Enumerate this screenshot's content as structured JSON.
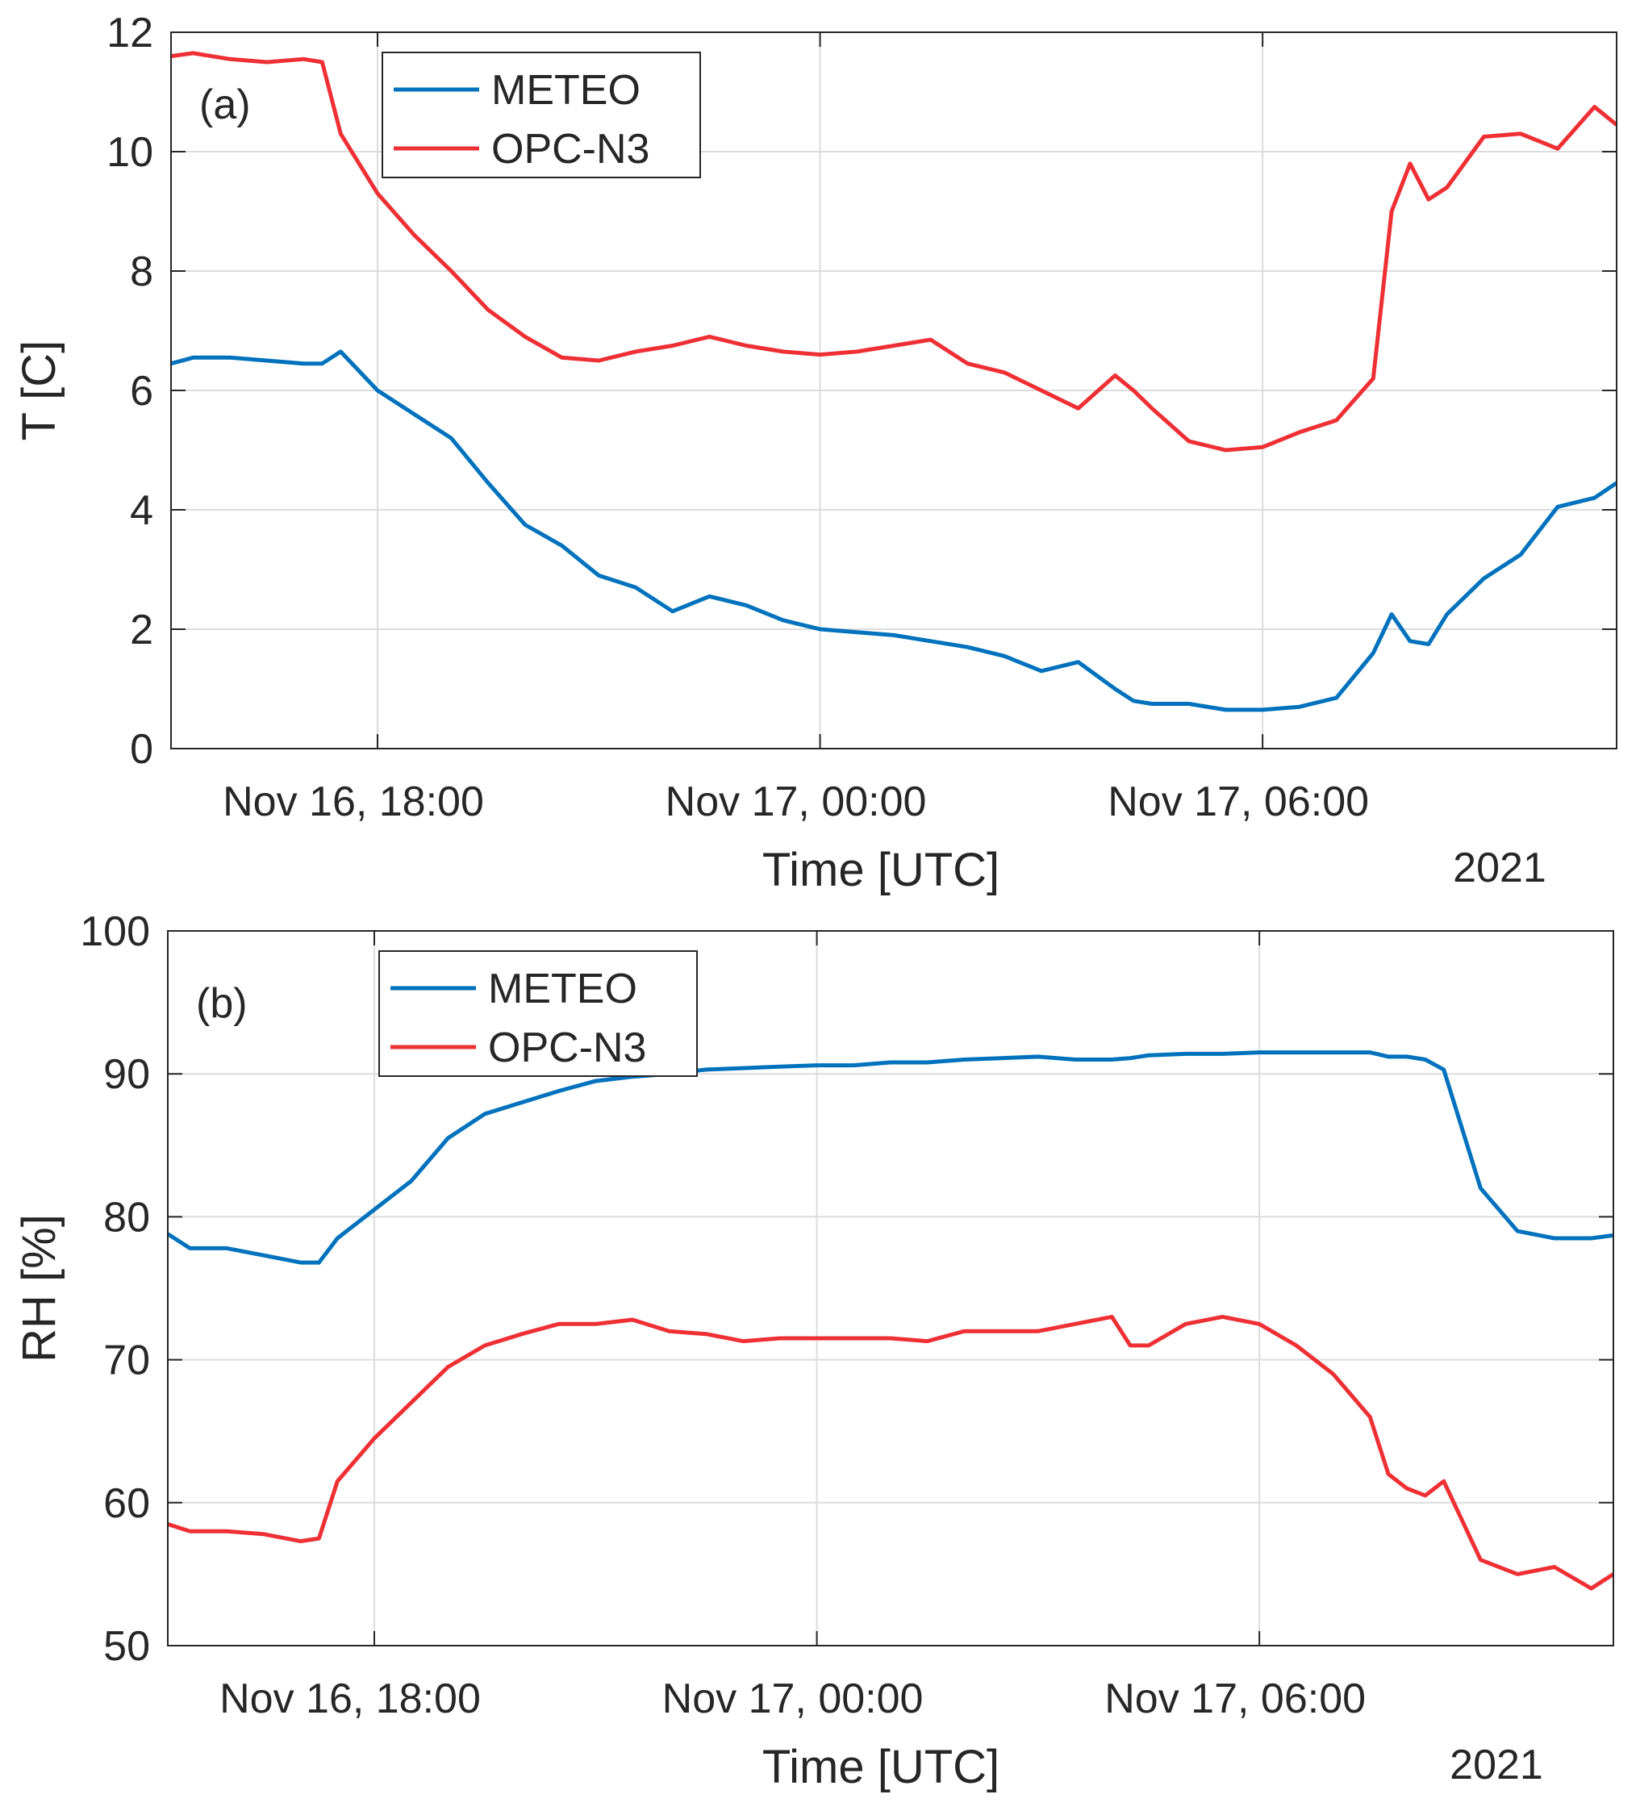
{
  "chart_data": [
    {
      "type": "line",
      "panel_label": "(a)",
      "ylabel": "T [C]",
      "xlabel": "Time [UTC]",
      "year_label": "2021",
      "ylim": [
        0,
        12
      ],
      "yticks": [
        "0",
        "2",
        "4",
        "6",
        "8",
        "10",
        "12"
      ],
      "xlim_hours": [
        15.2,
        10.8
      ],
      "xlim": [
        "Nov 16, 15:12",
        "Nov 17, 10:48"
      ],
      "xtick_labels": [
        "Nov 16, 18:00",
        "Nov 17, 00:00",
        "Nov 17, 06:00"
      ],
      "xtick_times": [
        "Nov 16, 18:00",
        "Nov 17, 00:00",
        "Nov 17, 06:00"
      ],
      "grid": true,
      "legend": "top-left",
      "x": [
        "Nov 16, 15:12",
        "Nov 16, 15:30",
        "Nov 16, 16:00",
        "Nov 16, 16:30",
        "Nov 16, 17:00",
        "Nov 16, 17:15",
        "Nov 16, 17:30",
        "Nov 16, 18:00",
        "Nov 16, 18:30",
        "Nov 16, 19:00",
        "Nov 16, 19:30",
        "Nov 16, 20:00",
        "Nov 16, 20:30",
        "Nov 16, 21:00",
        "Nov 16, 21:30",
        "Nov 16, 22:00",
        "Nov 16, 22:30",
        "Nov 16, 23:00",
        "Nov 16, 23:30",
        "Nov 17, 00:00",
        "Nov 17, 00:30",
        "Nov 17, 01:00",
        "Nov 17, 01:30",
        "Nov 17, 02:00",
        "Nov 17, 02:30",
        "Nov 17, 03:00",
        "Nov 17, 03:30",
        "Nov 17, 04:00",
        "Nov 17, 04:15",
        "Nov 17, 04:30",
        "Nov 17, 05:00",
        "Nov 17, 05:30",
        "Nov 17, 06:00",
        "Nov 17, 06:30",
        "Nov 17, 07:00",
        "Nov 17, 07:30",
        "Nov 17, 07:45",
        "Nov 17, 08:00",
        "Nov 17, 08:15",
        "Nov 17, 08:30",
        "Nov 17, 09:00",
        "Nov 17, 09:30",
        "Nov 17, 10:00",
        "Nov 17, 10:30",
        "Nov 17, 10:48"
      ],
      "series": [
        {
          "name": "METEO",
          "color": "#0072BD",
          "values": [
            6.45,
            6.55,
            6.55,
            6.5,
            6.45,
            6.45,
            6.65,
            6.0,
            5.6,
            5.2,
            4.45,
            3.75,
            3.4,
            2.9,
            2.7,
            2.3,
            2.55,
            2.4,
            2.15,
            2.0,
            1.95,
            1.9,
            1.8,
            1.7,
            1.55,
            1.3,
            1.45,
            1.0,
            0.8,
            0.75,
            0.75,
            0.65,
            0.65,
            0.7,
            0.85,
            1.6,
            2.25,
            1.8,
            1.75,
            2.25,
            2.85,
            3.25,
            4.05,
            4.2,
            4.45
          ]
        },
        {
          "name": "OPC-N3",
          "color": "#EE3035",
          "values": [
            11.6,
            11.65,
            11.55,
            11.5,
            11.55,
            11.5,
            10.3,
            9.3,
            8.6,
            8.0,
            7.35,
            6.9,
            6.55,
            6.5,
            6.65,
            6.75,
            6.9,
            6.75,
            6.65,
            6.6,
            6.65,
            6.75,
            6.85,
            6.45,
            6.3,
            6.0,
            5.7,
            6.25,
            6.0,
            5.7,
            5.15,
            5.0,
            5.05,
            5.3,
            5.5,
            6.2,
            9.0,
            9.8,
            9.2,
            9.4,
            10.25,
            10.3,
            10.05,
            10.75,
            10.45
          ]
        }
      ]
    },
    {
      "type": "line",
      "panel_label": "(b)",
      "ylabel": "RH [%]",
      "xlabel": "Time [UTC]",
      "year_label": "2021",
      "ylim": [
        50,
        100
      ],
      "yticks": [
        "50",
        "60",
        "70",
        "80",
        "90",
        "100"
      ],
      "xlim_hours": [
        15.2,
        10.8
      ],
      "xlim": [
        "Nov 16, 15:12",
        "Nov 17, 10:48"
      ],
      "xtick_labels": [
        "Nov 16, 18:00",
        "Nov 17, 00:00",
        "Nov 17, 06:00"
      ],
      "xtick_times": [
        "Nov 16, 18:00",
        "Nov 17, 00:00",
        "Nov 17, 06:00"
      ],
      "grid": true,
      "legend": "top-left",
      "x": [
        "Nov 16, 15:12",
        "Nov 16, 15:30",
        "Nov 16, 16:00",
        "Nov 16, 16:30",
        "Nov 16, 17:00",
        "Nov 16, 17:15",
        "Nov 16, 17:30",
        "Nov 16, 18:00",
        "Nov 16, 18:30",
        "Nov 16, 19:00",
        "Nov 16, 19:30",
        "Nov 16, 20:00",
        "Nov 16, 20:30",
        "Nov 16, 21:00",
        "Nov 16, 21:30",
        "Nov 16, 22:00",
        "Nov 16, 22:30",
        "Nov 16, 23:00",
        "Nov 16, 23:30",
        "Nov 17, 00:00",
        "Nov 17, 00:30",
        "Nov 17, 01:00",
        "Nov 17, 01:30",
        "Nov 17, 02:00",
        "Nov 17, 02:30",
        "Nov 17, 03:00",
        "Nov 17, 03:30",
        "Nov 17, 04:00",
        "Nov 17, 04:15",
        "Nov 17, 04:30",
        "Nov 17, 05:00",
        "Nov 17, 05:30",
        "Nov 17, 06:00",
        "Nov 17, 06:30",
        "Nov 17, 07:00",
        "Nov 17, 07:30",
        "Nov 17, 07:45",
        "Nov 17, 08:00",
        "Nov 17, 08:15",
        "Nov 17, 08:30",
        "Nov 17, 09:00",
        "Nov 17, 09:30",
        "Nov 17, 10:00",
        "Nov 17, 10:30",
        "Nov 17, 10:48"
      ],
      "series": [
        {
          "name": "METEO",
          "color": "#0072BD",
          "values": [
            78.8,
            77.8,
            77.8,
            77.3,
            76.8,
            76.8,
            78.5,
            80.5,
            82.5,
            85.5,
            87.2,
            88.0,
            88.8,
            89.5,
            89.8,
            90.0,
            90.3,
            90.4,
            90.5,
            90.6,
            90.6,
            90.8,
            90.8,
            91.0,
            91.1,
            91.2,
            91.0,
            91.0,
            91.1,
            91.3,
            91.4,
            91.4,
            91.5,
            91.5,
            91.5,
            91.5,
            91.2,
            91.2,
            91.0,
            90.3,
            82.0,
            79.0,
            78.5,
            78.5,
            78.7
          ]
        },
        {
          "name": "OPC-N3",
          "color": "#EE3035",
          "values": [
            58.5,
            58.0,
            58.0,
            57.8,
            57.3,
            57.5,
            61.5,
            64.5,
            67.0,
            69.5,
            71.0,
            71.8,
            72.5,
            72.5,
            72.8,
            72.0,
            71.8,
            71.3,
            71.5,
            71.5,
            71.5,
            71.5,
            71.3,
            72.0,
            72.0,
            72.0,
            72.5,
            73.0,
            71.0,
            71.0,
            72.5,
            73.0,
            72.5,
            71.0,
            69.0,
            66.0,
            62.0,
            61.0,
            60.5,
            61.5,
            56.0,
            55.0,
            55.5,
            54.0,
            55.0
          ]
        }
      ]
    }
  ]
}
